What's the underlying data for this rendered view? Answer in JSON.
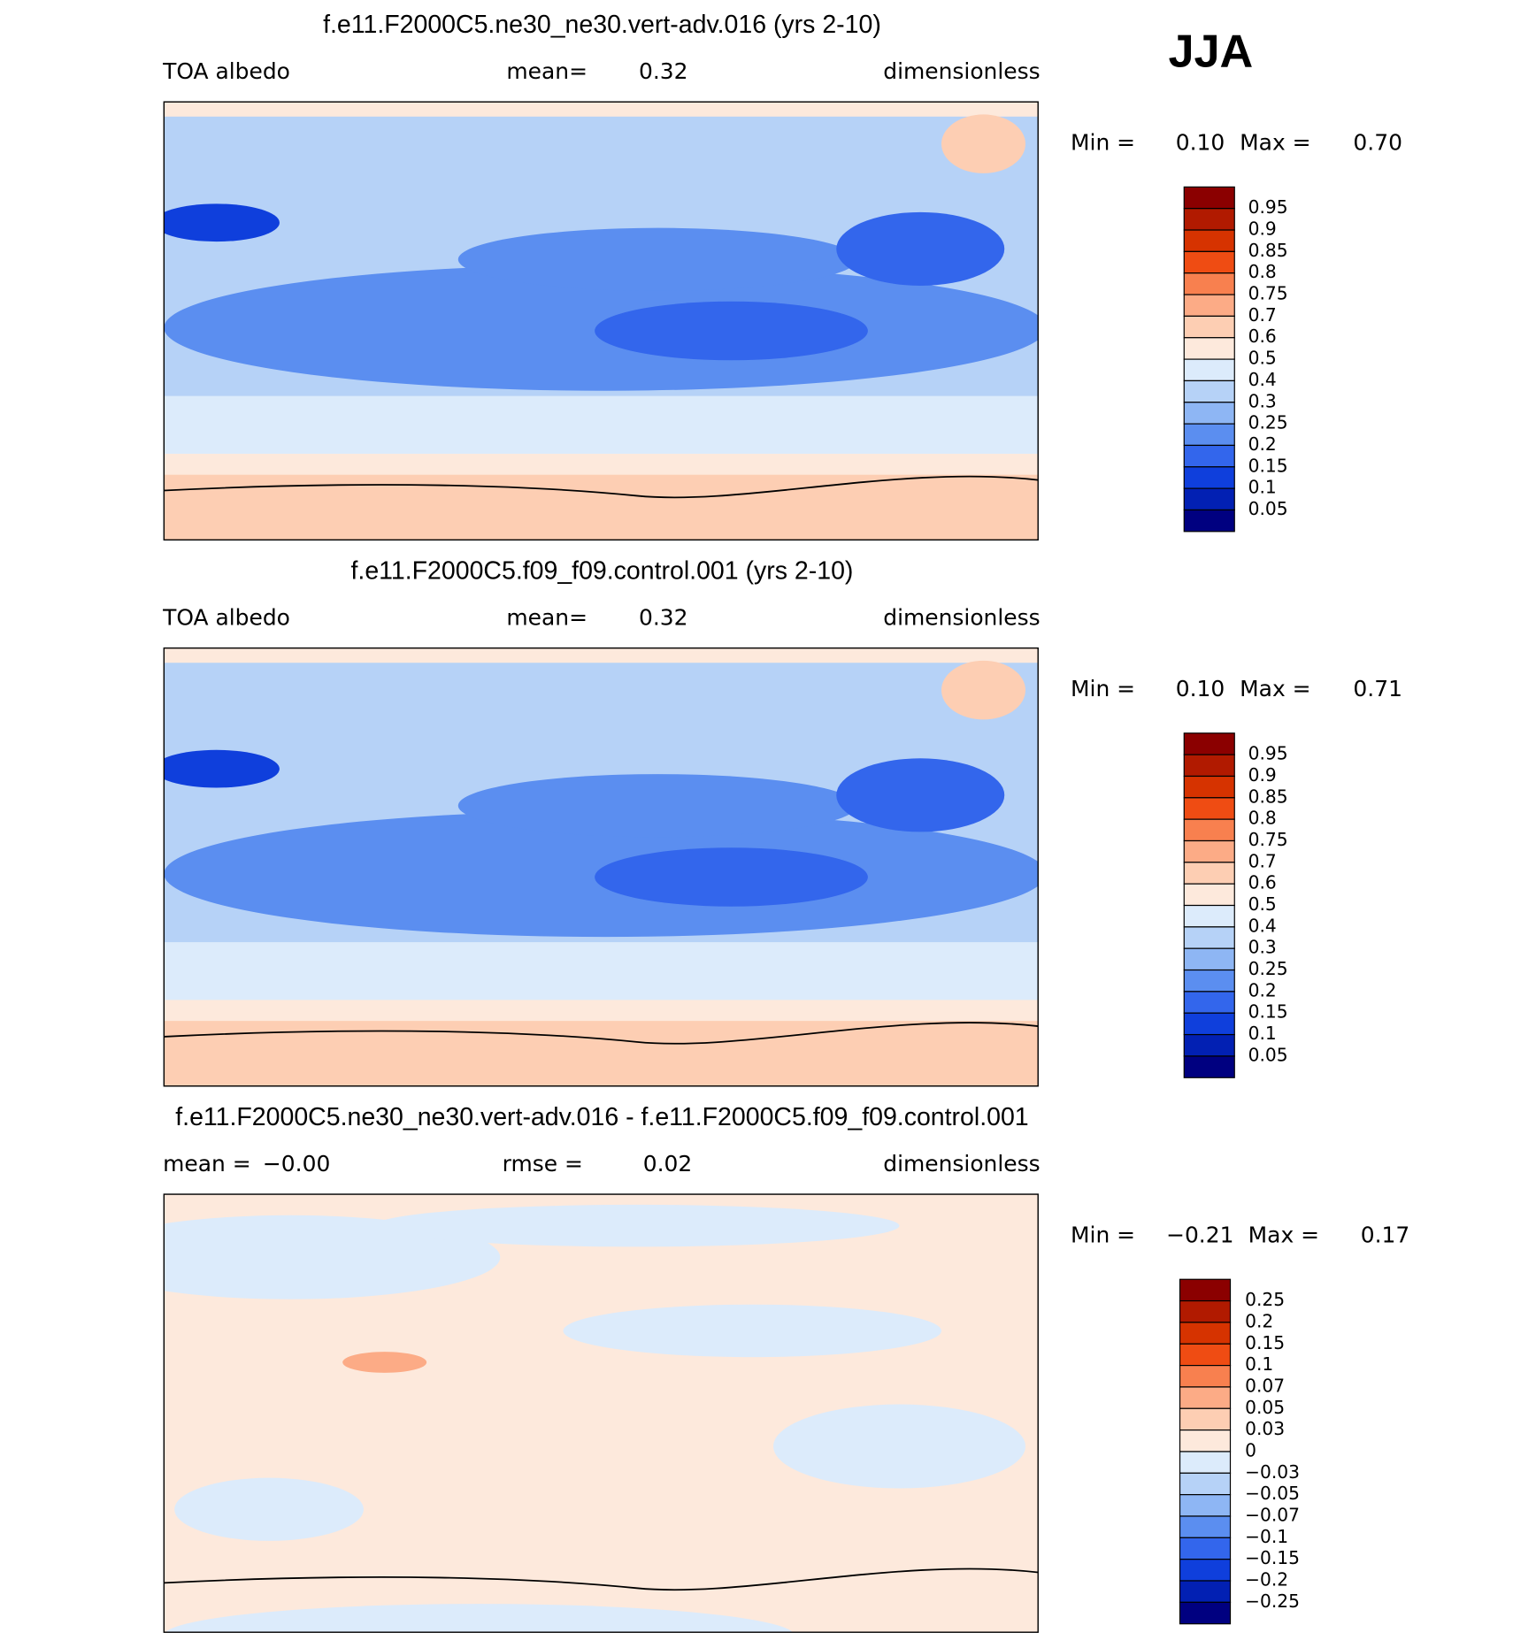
{
  "season": "JJA",
  "panels": [
    {
      "title": "f.e11.F2000C5.ne30_ne30.vert-adv.016 (yrs 2-10)",
      "left_label": "TOA albedo",
      "stat_label": "mean=",
      "stat_value": "0.32",
      "units": "dimensionless",
      "min_label": "Min =",
      "min_value": "0.10",
      "max_label": "Max =",
      "max_value": "0.70",
      "levels": [
        "0.95",
        "0.9",
        "0.85",
        "0.8",
        "0.75",
        "0.7",
        "0.6",
        "0.5",
        "0.4",
        "0.3",
        "0.25",
        "0.2",
        "0.15",
        "0.1",
        "0.05"
      ],
      "colors": [
        "#8b0000",
        "#b11a00",
        "#d63300",
        "#ef4c13",
        "#f8804f",
        "#fcab86",
        "#fdceb3",
        "#fde9dc",
        "#dcebfb",
        "#b6d2f7",
        "#8eb6f4",
        "#5b8ef0",
        "#3366ec",
        "#0f3fdc",
        "#0220b3",
        "#000080"
      ]
    },
    {
      "title": "f.e11.F2000C5.f09_f09.control.001 (yrs 2-10)",
      "left_label": "TOA albedo",
      "stat_label": "mean=",
      "stat_value": "0.32",
      "units": "dimensionless",
      "min_label": "Min =",
      "min_value": "0.10",
      "max_label": "Max =",
      "max_value": "0.71",
      "levels": [
        "0.95",
        "0.9",
        "0.85",
        "0.8",
        "0.75",
        "0.7",
        "0.6",
        "0.5",
        "0.4",
        "0.3",
        "0.25",
        "0.2",
        "0.15",
        "0.1",
        "0.05"
      ],
      "colors": [
        "#8b0000",
        "#b11a00",
        "#d63300",
        "#ef4c13",
        "#f8804f",
        "#fcab86",
        "#fdceb3",
        "#fde9dc",
        "#dcebfb",
        "#b6d2f7",
        "#8eb6f4",
        "#5b8ef0",
        "#3366ec",
        "#0f3fdc",
        "#0220b3",
        "#000080"
      ]
    },
    {
      "title": "f.e11.F2000C5.ne30_ne30.vert-adv.016 - f.e11.F2000C5.f09_f09.control.001",
      "left_label": "mean =",
      "left_value": "−0.00",
      "stat_label": "rmse =",
      "stat_value": "0.02",
      "units": "dimensionless",
      "min_label": "Min =",
      "min_value": "−0.21",
      "max_label": "Max =",
      "max_value": "0.17",
      "levels": [
        "0.25",
        "0.2",
        "0.15",
        "0.1",
        "0.07",
        "0.05",
        "0.03",
        "0",
        "−0.03",
        "−0.05",
        "−0.07",
        "−0.1",
        "−0.15",
        "−0.2",
        "−0.25"
      ],
      "colors": [
        "#8b0000",
        "#b11a00",
        "#d63300",
        "#ef4c13",
        "#f8804f",
        "#fcab86",
        "#fdceb3",
        "#fde9dc",
        "#dcebfb",
        "#b6d2f7",
        "#8eb6f4",
        "#5b8ef0",
        "#3366ec",
        "#0f3fdc",
        "#0220b3",
        "#000080"
      ]
    }
  ]
}
